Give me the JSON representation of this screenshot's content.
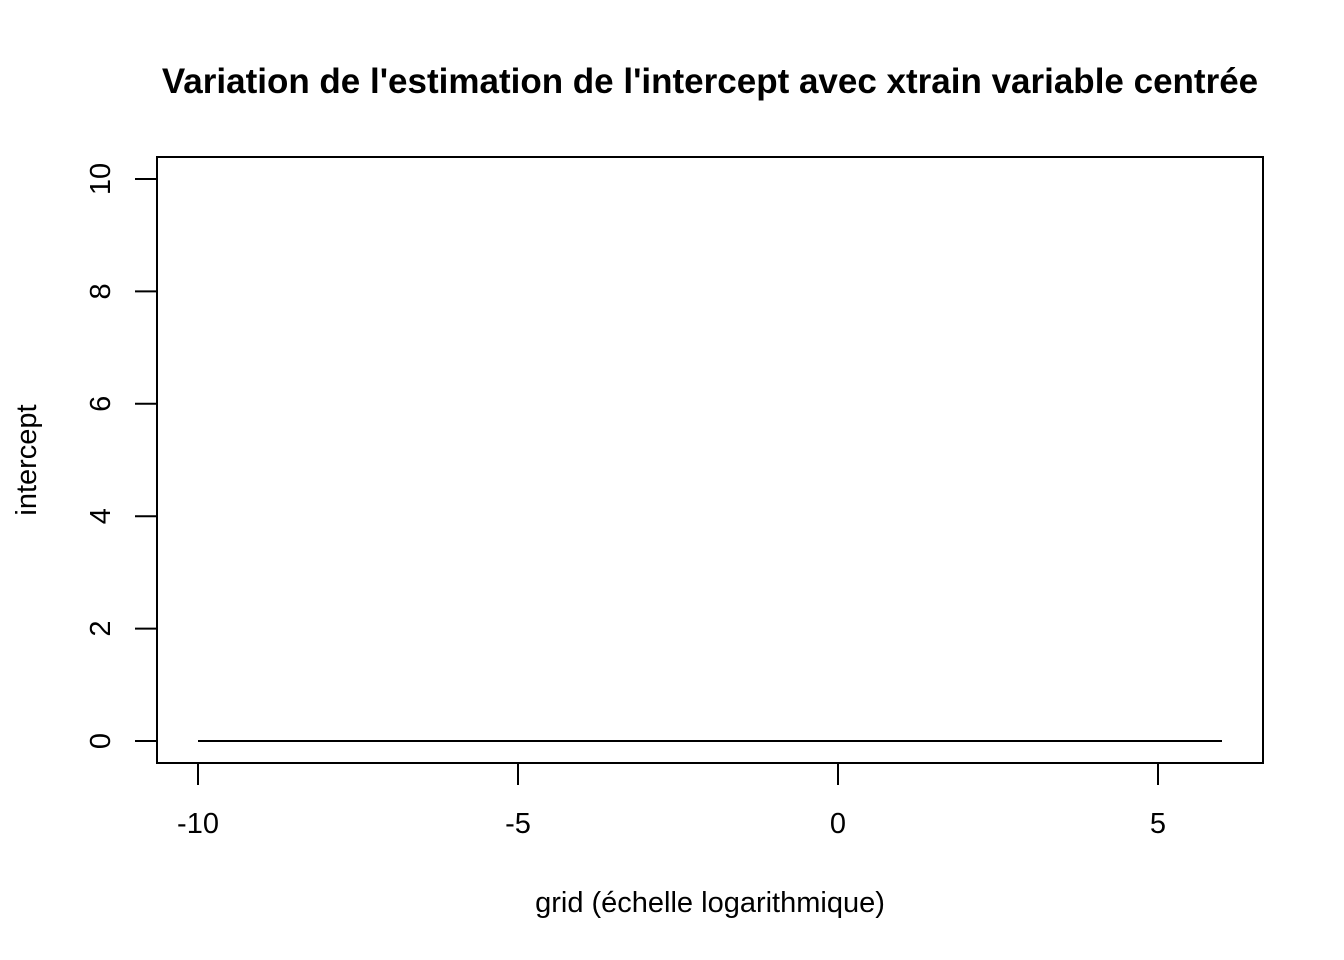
{
  "chart_data": {
    "type": "line",
    "title": "Variation de l'estimation de l'intercept avec xtrain variable centrée",
    "xlabel": "grid (échelle logarithmique)",
    "ylabel": "intercept",
    "xlim": [
      -10,
      6
    ],
    "ylim": [
      0,
      10
    ],
    "x_ticks": [
      -10,
      -5,
      0,
      5
    ],
    "y_ticks": [
      0,
      2,
      4,
      6,
      8,
      10
    ],
    "grid": false,
    "legend": "none",
    "series": [
      {
        "x": [
          -10,
          6
        ],
        "y": [
          0,
          0
        ],
        "color": "#000000"
      }
    ]
  }
}
